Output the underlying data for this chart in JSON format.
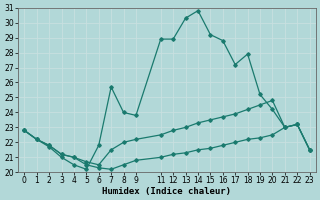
{
  "xlabel": "Humidex (Indice chaleur)",
  "xlim": [
    -0.5,
    23.5
  ],
  "ylim": [
    20,
    31
  ],
  "bg_color": "#b2d8d8",
  "grid_color": "#d0e8e8",
  "line_color": "#1a7a6e",
  "lines": [
    {
      "x": [
        0,
        1,
        2,
        3,
        4,
        5,
        6,
        7,
        8,
        9,
        11,
        12,
        13,
        14,
        15,
        16,
        17,
        18,
        19,
        20,
        21,
        22,
        23
      ],
      "y": [
        22.8,
        22.2,
        21.7,
        21.0,
        20.5,
        20.2,
        21.8,
        25.7,
        24.0,
        23.8,
        28.9,
        28.9,
        30.3,
        30.8,
        29.2,
        28.8,
        27.2,
        27.9,
        25.2,
        24.2,
        23.0,
        23.2,
        21.5
      ]
    },
    {
      "x": [
        0,
        1,
        2,
        3,
        4,
        5,
        6,
        7,
        8,
        9,
        11,
        12,
        13,
        14,
        15,
        16,
        17,
        18,
        19,
        20,
        21,
        22,
        23
      ],
      "y": [
        22.8,
        22.2,
        21.8,
        21.2,
        21.0,
        20.7,
        20.5,
        21.5,
        22.0,
        22.2,
        22.5,
        22.8,
        23.0,
        23.3,
        23.5,
        23.7,
        23.9,
        24.2,
        24.5,
        24.8,
        23.0,
        23.2,
        21.5
      ]
    },
    {
      "x": [
        0,
        1,
        2,
        3,
        4,
        5,
        6,
        7,
        8,
        9,
        11,
        12,
        13,
        14,
        15,
        16,
        17,
        18,
        19,
        20,
        21,
        22,
        23
      ],
      "y": [
        22.8,
        22.2,
        21.8,
        21.2,
        21.0,
        20.5,
        20.3,
        20.2,
        20.5,
        20.8,
        21.0,
        21.2,
        21.3,
        21.5,
        21.6,
        21.8,
        22.0,
        22.2,
        22.3,
        22.5,
        23.0,
        23.2,
        21.5
      ]
    }
  ],
  "xtick_vals": [
    0,
    1,
    2,
    3,
    4,
    5,
    6,
    7,
    8,
    9,
    11,
    12,
    13,
    14,
    15,
    16,
    17,
    18,
    19,
    20,
    21,
    22,
    23
  ],
  "xtick_labels": [
    "0",
    "1",
    "2",
    "3",
    "4",
    "5",
    "6",
    "7",
    "8",
    "9",
    "11",
    "12",
    "13",
    "14",
    "15",
    "16",
    "17",
    "18",
    "19",
    "20",
    "21",
    "22",
    "23"
  ],
  "yticks": [
    20,
    21,
    22,
    23,
    24,
    25,
    26,
    27,
    28,
    29,
    30,
    31
  ],
  "tick_fs": 5.5,
  "label_fs": 6.5
}
